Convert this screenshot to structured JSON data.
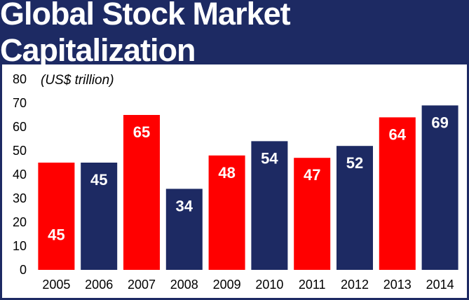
{
  "colors": {
    "header_bg": "#1d2a63",
    "red": "#ff0000",
    "navy": "#1d2a63"
  },
  "chart_data": {
    "type": "bar",
    "title": "Global Stock Market Capitalization",
    "unit_label": "(US$ trillion)",
    "xlabel": "",
    "ylabel": "",
    "categories": [
      "2005",
      "2006",
      "2007",
      "2008",
      "2009",
      "2010",
      "2011",
      "2012",
      "2013",
      "2014"
    ],
    "values": [
      45,
      45,
      65,
      34,
      48,
      54,
      47,
      52,
      64,
      69
    ],
    "bar_colors": [
      "red",
      "navy",
      "red",
      "navy",
      "red",
      "navy",
      "red",
      "navy",
      "red",
      "navy"
    ],
    "ylim": [
      0,
      80
    ],
    "yticks": [
      0,
      10,
      20,
      30,
      40,
      50,
      60,
      70,
      80
    ],
    "grid": false,
    "legend": "none"
  }
}
